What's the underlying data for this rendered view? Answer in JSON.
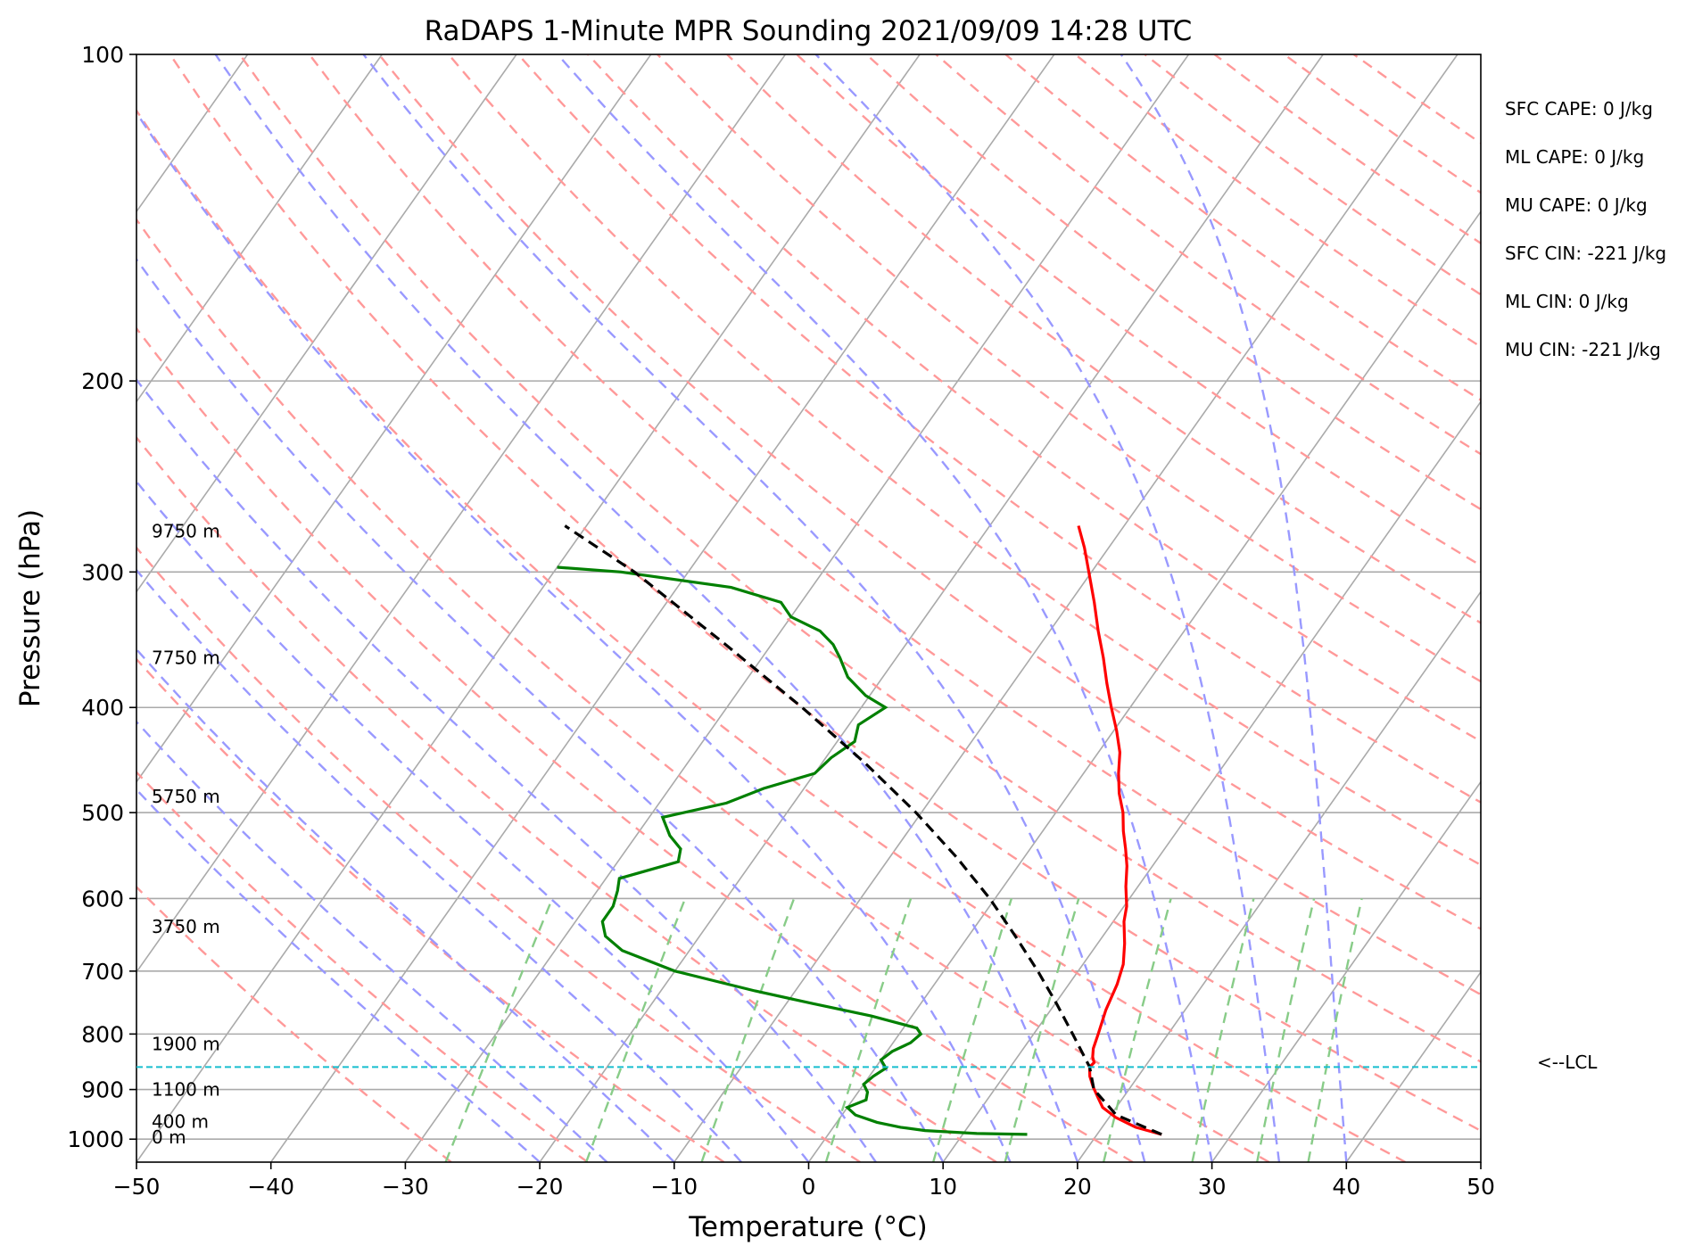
{
  "chart_data": {
    "type": "line",
    "chart_kind": "skew-T log-P sounding",
    "title": "RaDAPS 1-Minute MPR Sounding 2021/09/09 14:28 UTC",
    "xlabel": "Temperature (°C)",
    "ylabel": "Pressure (hPa)",
    "xlim": [
      -50,
      50
    ],
    "ylim": [
      1050,
      100
    ],
    "y_scale": "log",
    "x_ticks": [
      -50,
      -40,
      -30,
      -20,
      -10,
      0,
      10,
      20,
      30,
      40,
      50
    ],
    "x_tick_labels": [
      "−50",
      "−40",
      "−30",
      "−20",
      "−10",
      "0",
      "10",
      "20",
      "30",
      "40",
      "50"
    ],
    "y_ticks": [
      1000,
      900,
      800,
      700,
      600,
      500,
      400,
      300,
      200,
      100
    ],
    "y_tick_labels": [
      "1000",
      "900",
      "800",
      "700",
      "600",
      "500",
      "400",
      "300",
      "200",
      "100"
    ],
    "grid": true,
    "colors": {
      "temperature": "#ff0000",
      "dewpoint": "#008000",
      "parcel": "#000000",
      "isotherm": "#aaaaaa",
      "dry_adiabat": "#ff9999",
      "moist_adiabat": "#9999ff",
      "mixing_ratio": "#88cc88",
      "lcl": "#17becf"
    },
    "series": [
      {
        "key": "temperature",
        "p": [
          990,
          975,
          955,
          935,
          915,
          895,
          875,
          858,
          850,
          840,
          825,
          800,
          760,
          720,
          690,
          660,
          630,
          610,
          585,
          560,
          540,
          520,
          500,
          480,
          460,
          440,
          420,
          400,
          380,
          360,
          340,
          320,
          300,
          285,
          272
        ],
        "t": [
          24.8,
          22.5,
          20.5,
          19.0,
          18.1,
          17.2,
          16.4,
          15.9,
          16.0,
          15.6,
          15.2,
          14.8,
          14.1,
          13.6,
          13.0,
          12.0,
          10.8,
          10.2,
          9.1,
          8.1,
          7.1,
          6.0,
          5.0,
          3.7,
          2.6,
          1.6,
          0.2,
          -1.4,
          -3.0,
          -4.6,
          -6.4,
          -8.2,
          -10.2,
          -11.8,
          -13.4
        ]
      },
      {
        "key": "dewpoint",
        "p": [
          990,
          988,
          982,
          975,
          965,
          950,
          935,
          920,
          905,
          890,
          875,
          860,
          845,
          830,
          815,
          800,
          790,
          770,
          750,
          730,
          700,
          670,
          650,
          630,
          610,
          590,
          575,
          555,
          540,
          525,
          505,
          490,
          475,
          460,
          445,
          430,
          415,
          400,
          390,
          375,
          360,
          350,
          340,
          330,
          320,
          310,
          300,
          297
        ],
        "t": [
          14.8,
          11.0,
          7.0,
          5.0,
          3.0,
          1.0,
          0.0,
          1.0,
          0.7,
          0.0,
          0.3,
          0.8,
          0.0,
          0.4,
          1.3,
          1.6,
          1.0,
          -3.0,
          -8.0,
          -13.0,
          -20.0,
          -25.0,
          -27.0,
          -28.0,
          -28.0,
          -28.5,
          -29.0,
          -25.5,
          -26.0,
          -27.5,
          -29.0,
          -25.0,
          -23.0,
          -20.0,
          -19.6,
          -18.7,
          -19.3,
          -18.2,
          -20.3,
          -22.6,
          -24.2,
          -25.4,
          -27.1,
          -30.0,
          -31.5,
          -36.0,
          -45.0,
          -50.0
        ]
      },
      {
        "key": "parcel",
        "p": [
          990,
          950,
          900,
          858,
          800,
          750,
          700,
          650,
          600,
          550,
          500,
          450,
          400,
          350,
          300,
          272
        ],
        "t": [
          24.8,
          20.4,
          17.4,
          15.9,
          12.9,
          10.1,
          7.0,
          3.5,
          -0.4,
          -5.0,
          -10.4,
          -16.8,
          -24.4,
          -33.4,
          -44.0,
          -51.6
        ]
      }
    ],
    "height_labels": [
      {
        "text": "9750 m",
        "p": 275
      },
      {
        "text": "7750 m",
        "p": 360
      },
      {
        "text": "5750 m",
        "p": 483
      },
      {
        "text": "3750 m",
        "p": 637
      },
      {
        "text": "1900 m",
        "p": 817
      },
      {
        "text": "1100 m",
        "p": 900
      },
      {
        "text": "400 m",
        "p": 963
      },
      {
        "text": "0 m",
        "p": 996
      }
    ],
    "lcl": {
      "p": 858,
      "label": "<--LCL"
    },
    "indices": [
      "SFC CAPE: 0 J/kg",
      "ML CAPE: 0 J/kg",
      "MU CAPE: 0 J/kg",
      "SFC CIN: -221 J/kg",
      "ML CIN: 0 J/kg",
      "MU CIN: -221 J/kg"
    ],
    "mixing_ratio_lines_gkg": [
      0.4,
      1,
      2,
      4,
      7,
      10,
      16,
      24,
      32,
      40
    ]
  }
}
